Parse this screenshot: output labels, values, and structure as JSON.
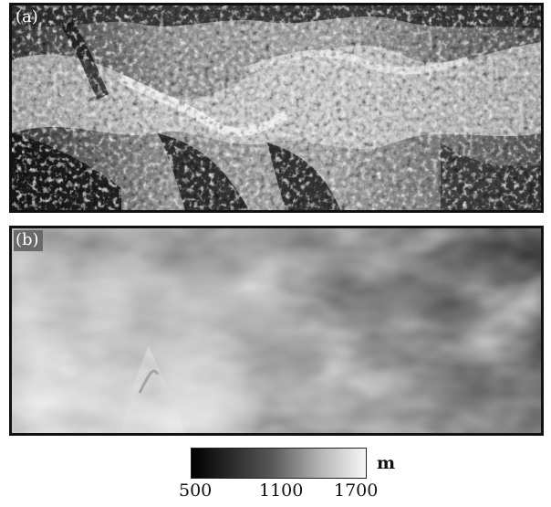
{
  "panels": {
    "a": {
      "label": "(a)",
      "image": "SAR intensity image of rugged mountainous terrain (grayscale)"
    },
    "b": {
      "label": "(b)",
      "image": "Elevation (DEM) map of the same area, bright = high"
    }
  },
  "colorbar": {
    "unit": "m",
    "ticks": [
      "500",
      "1100",
      "1700"
    ],
    "colors": [
      "#000000",
      "#555555",
      "#b8b8b8",
      "#f6f6f6"
    ]
  }
}
